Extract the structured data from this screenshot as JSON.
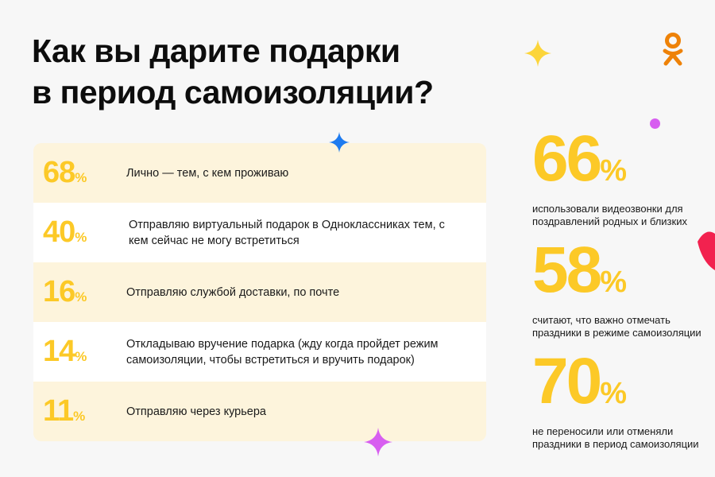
{
  "title": {
    "line1": "Как вы дарите подарки",
    "line2": "в период самоизоляции?"
  },
  "percent_sign": "%",
  "rows": [
    {
      "value": "68",
      "text": "Лично — тем, с кем проживаю"
    },
    {
      "value": "40",
      "text": "Отправляю виртуальный подарок в Одноклассниках тем, с кем сейчас не могу встретиться"
    },
    {
      "value": "16",
      "text": "Отправляю службой доставки, по почте"
    },
    {
      "value": "14",
      "text": "Откладываю вручение подарка (жду когда пройдет режим самоизоляции, чтобы встретиться и вручить подарок)"
    },
    {
      "value": "11",
      "text": "Отправляю через курьера"
    }
  ],
  "stats": [
    {
      "value": "66",
      "caption": "использовали видеозвонки для поздравлений родных и близких"
    },
    {
      "value": "58",
      "caption": "считают, что важно отмечать праздники в режиме самоизоляции"
    },
    {
      "value": "70",
      "caption": "не переносили или отменяли праздники в период самоизоляции"
    }
  ],
  "logo": {
    "icon": "odnoklassniki-logo",
    "color": "#ee8208"
  },
  "colors": {
    "accent": "#fcc927",
    "row_alt": "#fdf4dc",
    "background": "#f7f7f7"
  }
}
